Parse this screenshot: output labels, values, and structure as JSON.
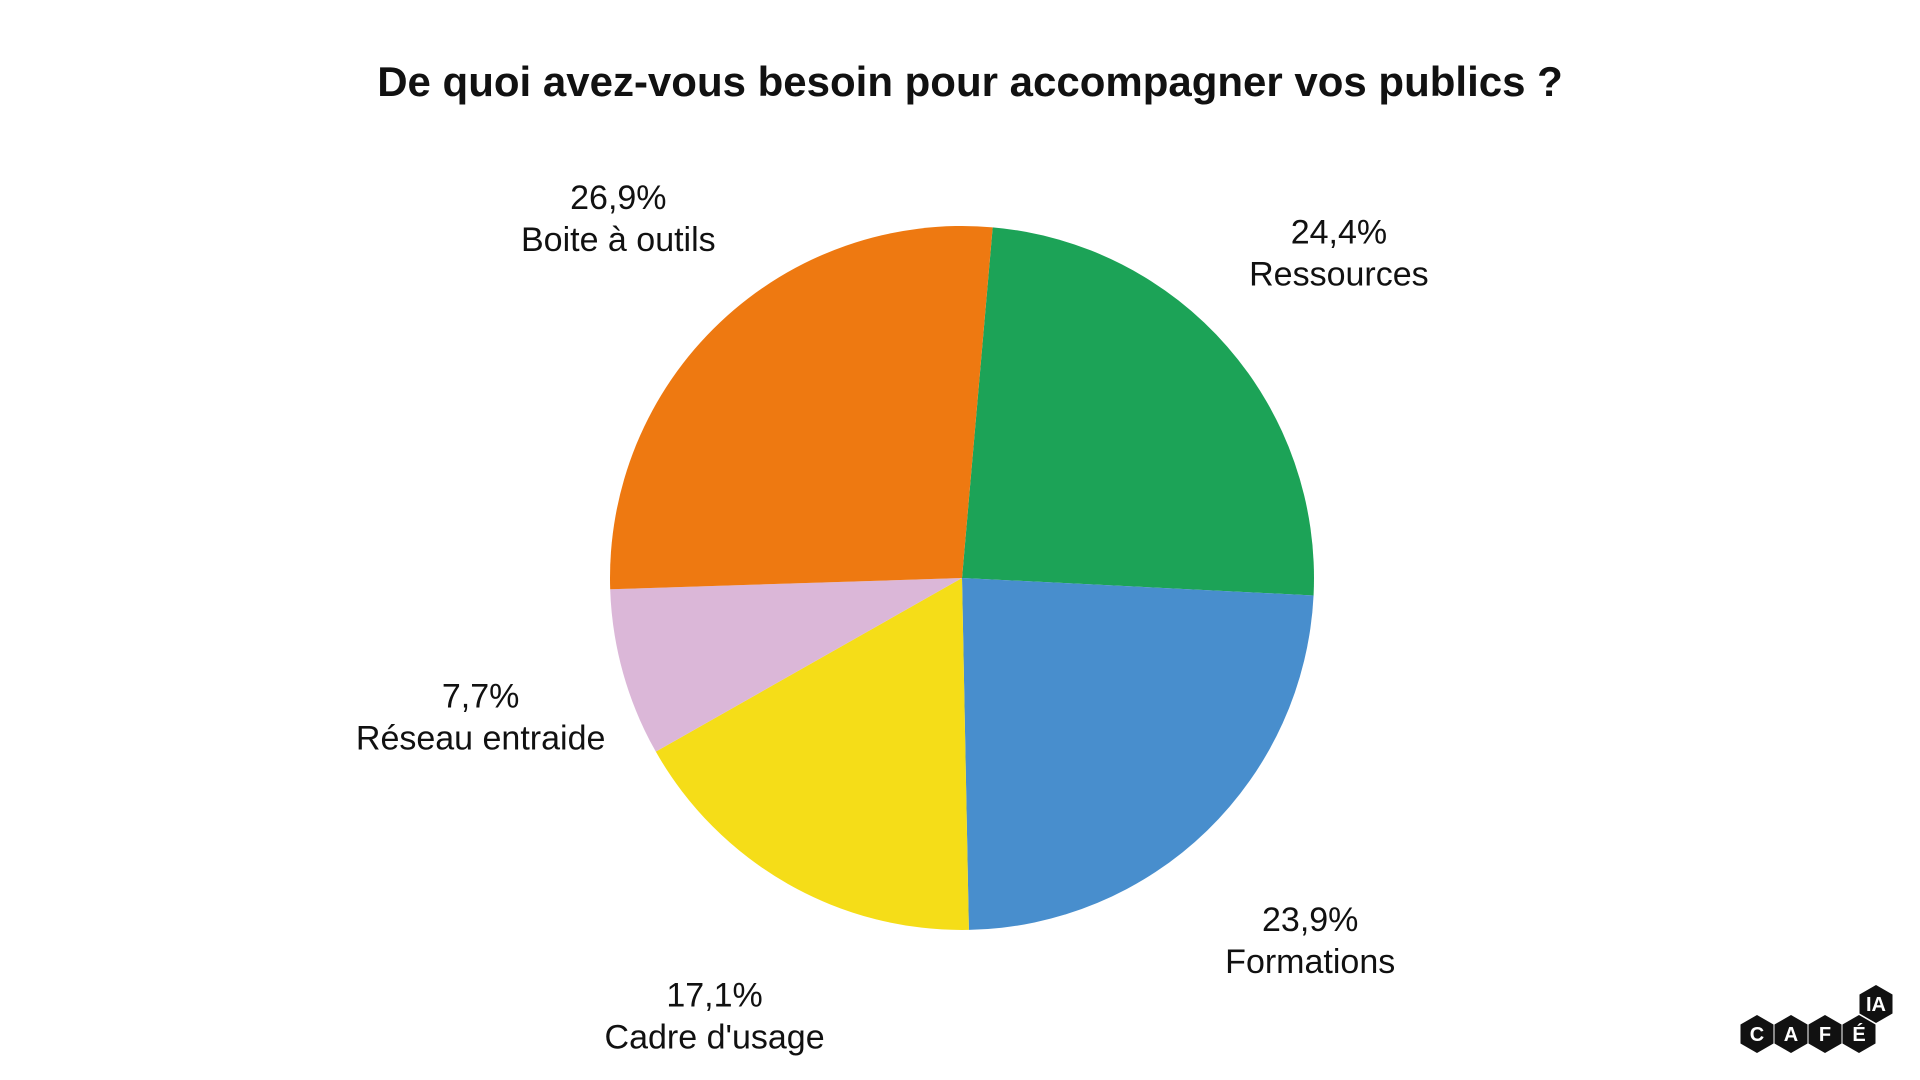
{
  "chart_data": {
    "type": "pie",
    "title": "De quoi avez-vous besoin pour accompagner vos publics ?",
    "slices": [
      {
        "label": "Ressources",
        "value": 24.4,
        "value_label": "24,4%",
        "color": "#1ca357"
      },
      {
        "label": "Formations",
        "value": 23.9,
        "value_label": "23,9%",
        "color": "#488ecd"
      },
      {
        "label": "Cadre d'usage",
        "value": 17.1,
        "value_label": "17,1%",
        "color": "#f5dd18"
      },
      {
        "label": "Réseau entraide",
        "value": 7.7,
        "value_label": "7,7%",
        "color": "#dbb7d8"
      },
      {
        "label": "Boite à outils",
        "value": 26.9,
        "value_label": "26,9%",
        "color": "#ee7911"
      }
    ],
    "start_angle_deg": 5,
    "direction": "clockwise",
    "legend": "none"
  },
  "logo": {
    "letters": [
      "C",
      "A",
      "F",
      "É"
    ],
    "badge": "IA",
    "color": "#111111"
  }
}
